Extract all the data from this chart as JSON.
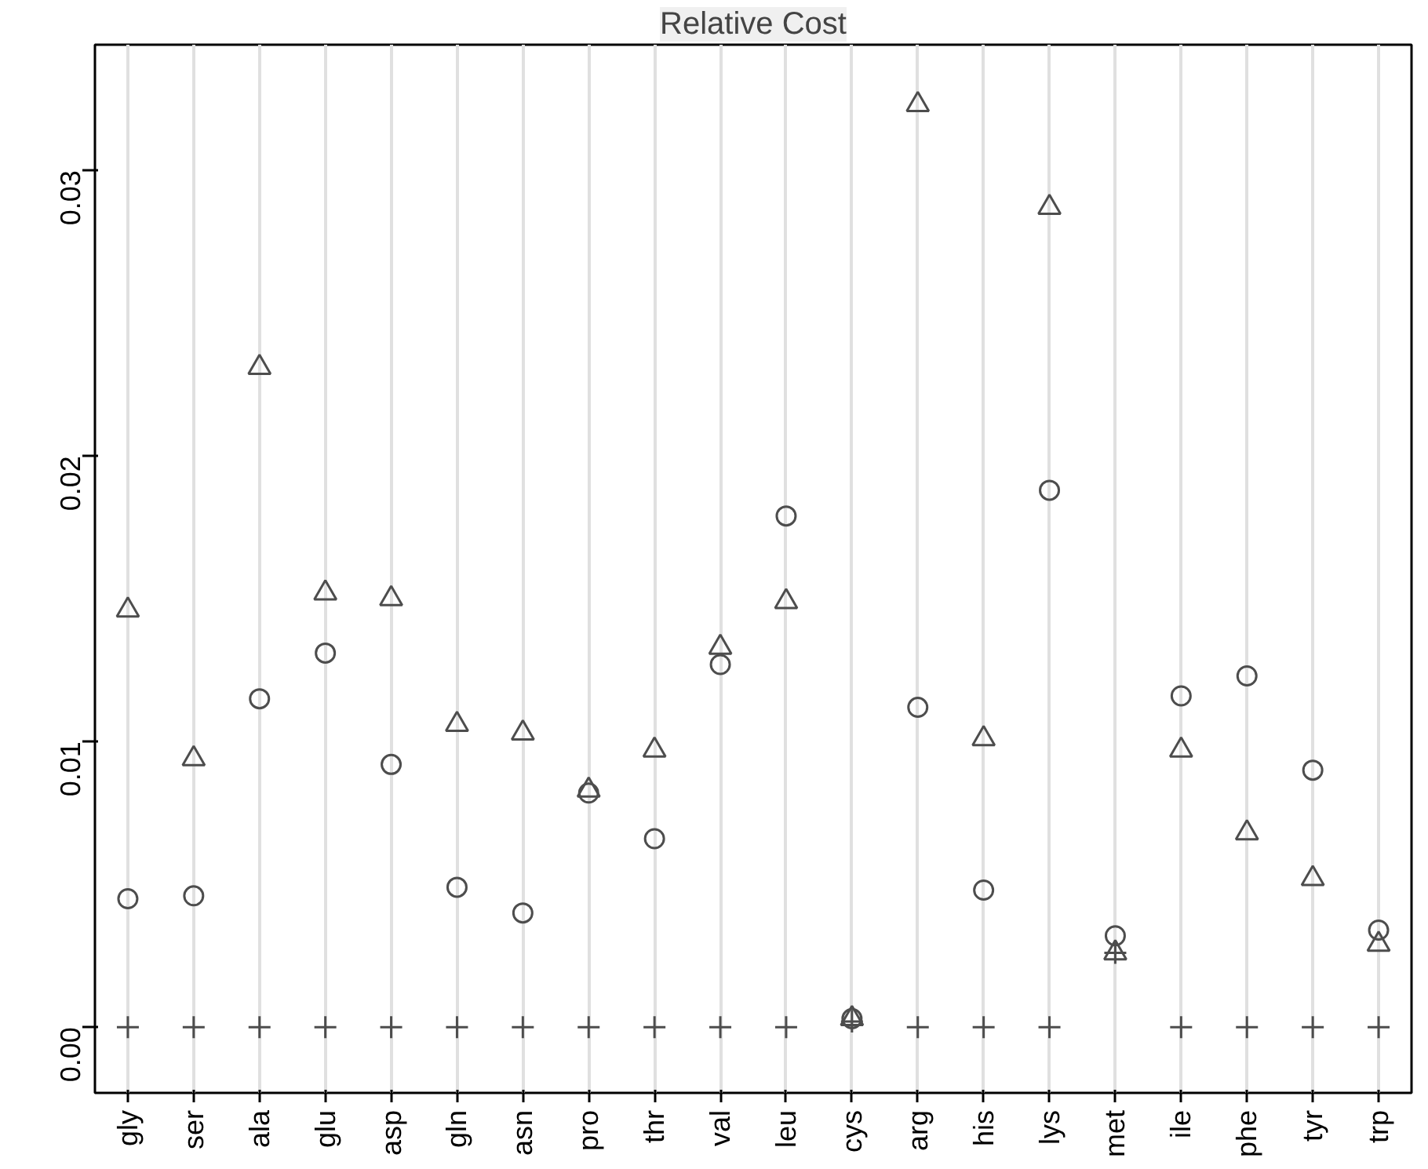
{
  "chart_data": {
    "type": "scatter",
    "title": "Relative Cost",
    "categories": [
      "gly",
      "ser",
      "ala",
      "glu",
      "asp",
      "gln",
      "asn",
      "pro",
      "thr",
      "val",
      "leu",
      "cys",
      "arg",
      "his",
      "lys",
      "met",
      "ile",
      "phe",
      "tyr",
      "trp"
    ],
    "series": [
      {
        "color": "#4d4d4d",
        "marker": "triangle",
        "values": [
          0.0146,
          0.0094,
          0.0231,
          0.0152,
          0.015,
          0.0106,
          0.0103,
          0.0083,
          0.0097,
          0.0133,
          0.0149,
          0.0003,
          0.0323,
          0.0101,
          0.0287,
          0.0026,
          0.0097,
          0.0068,
          0.0052,
          0.0029
        ]
      },
      {
        "color": "#4d4d4d",
        "marker": "circle",
        "values": [
          0.0045,
          0.0046,
          0.0115,
          0.0131,
          0.0092,
          0.0049,
          0.004,
          0.0082,
          0.0066,
          0.0127,
          0.0179,
          0.0003,
          0.0112,
          0.0048,
          0.0188,
          0.0032,
          0.0116,
          0.0123,
          0.009,
          0.0034
        ]
      },
      {
        "color": "#4d4d4d",
        "marker": "cross",
        "values": [
          0,
          0,
          0,
          0,
          0,
          0,
          0,
          0,
          0,
          0,
          0,
          0.0002,
          0,
          0,
          0,
          0.0026,
          0,
          0,
          0,
          0
        ]
      }
    ],
    "ylim": [
      -0.0023,
      0.0344
    ],
    "yticks": [
      {
        "value": 0,
        "label": "0.00"
      },
      0.01,
      0.02,
      0.03
    ],
    "grid": "x"
  }
}
